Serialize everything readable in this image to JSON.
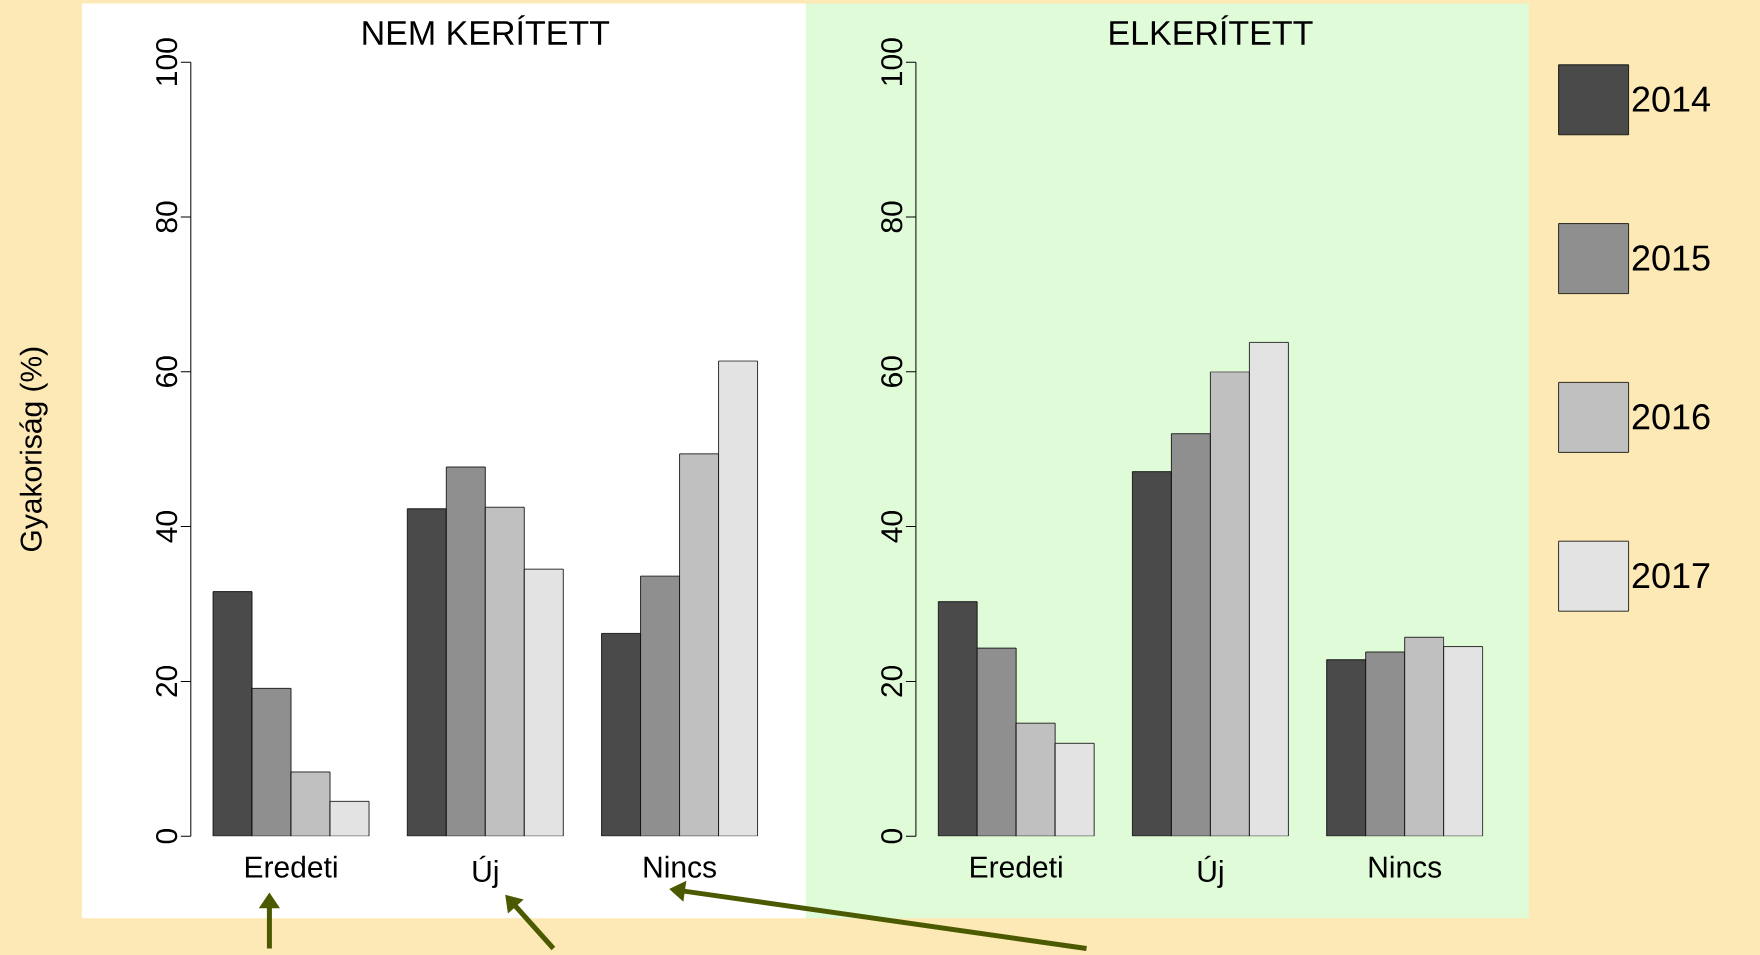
{
  "chart_data": [
    {
      "type": "bar",
      "title": "NEM KERÍTETT",
      "ylabel": "Gyakoriság (%)",
      "categories": [
        "Eredeti",
        "Új",
        "Nincs"
      ],
      "ylim": [
        0,
        100
      ],
      "yticks": [
        0,
        20,
        40,
        60,
        80,
        100
      ],
      "series": [
        {
          "color": "#4a4a4a",
          "values": [
            31.6,
            42.3,
            26.2
          ]
        },
        {
          "color": "#8f8f8f",
          "values": [
            19.1,
            47.7,
            33.6
          ]
        },
        {
          "color": "#c0c0c0",
          "values": [
            8.3,
            42.5,
            49.4
          ]
        },
        {
          "color": "#e3e3e3",
          "values": [
            4.5,
            34.5,
            61.4
          ]
        }
      ]
    },
    {
      "type": "bar",
      "title": "ELKERÍTETT",
      "categories": [
        "Eredeti",
        "Új",
        "Nincs"
      ],
      "ylim": [
        0,
        100
      ],
      "yticks": [
        0,
        20,
        40,
        60,
        80,
        100
      ],
      "legend": "right",
      "series": [
        {
          "name": "2014",
          "color": "#4a4a4a",
          "values": [
            30.3,
            47.1,
            22.8
          ]
        },
        {
          "name": "2015",
          "color": "#8f8f8f",
          "values": [
            24.3,
            52.0,
            23.8
          ]
        },
        {
          "name": "2016",
          "color": "#c0c0c0",
          "values": [
            14.6,
            60.0,
            25.7
          ]
        },
        {
          "name": "2017",
          "color": "#e3e3e3",
          "values": [
            12.0,
            63.8,
            24.5
          ]
        }
      ]
    }
  ]
}
